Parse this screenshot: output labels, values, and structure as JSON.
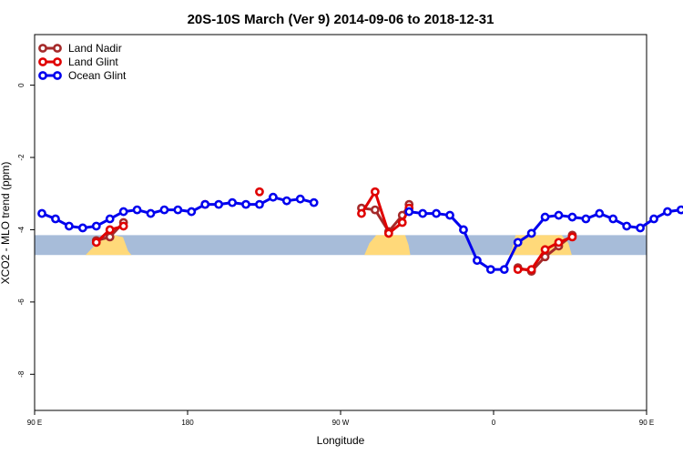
{
  "chart_data": {
    "type": "line",
    "title": "20S-10S March (Ver 9)   2014-09-06 to 2018-12-31",
    "xlabel": "Longitude",
    "ylabel": "XCO2 - MLO trend (ppm)",
    "xlim": [
      90,
      450
    ],
    "ylim": [
      -9,
      1.4
    ],
    "x_ticks": [
      {
        "value": 90,
        "label": "90 E"
      },
      {
        "value": 180,
        "label": "180"
      },
      {
        "value": 270,
        "label": "90 W"
      },
      {
        "value": 360,
        "label": "0"
      },
      {
        "value": 450,
        "label": "90 E"
      },
      {
        "value": 540,
        "label": "180"
      }
    ],
    "y_ticks": [
      {
        "value": 0,
        "label": "0"
      },
      {
        "value": -2,
        "label": "-2"
      },
      {
        "value": -4,
        "label": "-4"
      },
      {
        "value": -6,
        "label": "-6"
      },
      {
        "value": -8,
        "label": "-8"
      }
    ],
    "legend_position": "top-left",
    "background_band": {
      "y_range": [
        -4.7,
        -4.15
      ],
      "ocean_color": "#a7bcd9",
      "land_color": "#ffd97a"
    },
    "series": [
      {
        "name": "Land Nadir",
        "color": "#a52a2a",
        "segments": [
          [
            [
              126.3,
              -4.3
            ],
            [
              134.3,
              -4.2
            ],
            [
              142.3,
              -3.8
            ]
          ],
          [
            [
              282.3,
              -3.4
            ],
            [
              290.3,
              -3.45
            ],
            [
              298.3,
              -4.05
            ],
            [
              306.3,
              -3.6
            ],
            [
              310.3,
              -3.3
            ]
          ],
          [
            [
              374.3,
              -5.05
            ],
            [
              382.3,
              -5.15
            ],
            [
              390.3,
              -4.75
            ],
            [
              398.3,
              -4.45
            ],
            [
              406.3,
              -4.15
            ]
          ],
          [
            [
              486.3,
              -4.3
            ],
            [
              494.3,
              -4.1
            ],
            [
              502.3,
              -3.85
            ]
          ]
        ]
      },
      {
        "name": "Land Glint",
        "color": "#e00000",
        "segments": [
          [
            [
              126.3,
              -4.35
            ],
            [
              134.3,
              -4.0
            ],
            [
              142.3,
              -3.9
            ]
          ],
          [
            [
              190.3,
              -3.3
            ]
          ],
          [
            [
              222.3,
              -2.95
            ]
          ],
          [
            [
              282.3,
              -3.55
            ],
            [
              290.3,
              -2.95
            ],
            [
              298.3,
              -4.1
            ],
            [
              306.3,
              -3.8
            ],
            [
              310.3,
              -3.4
            ]
          ],
          [
            [
              374.3,
              -5.1
            ],
            [
              382.3,
              -5.1
            ],
            [
              390.3,
              -4.55
            ],
            [
              398.3,
              -4.35
            ],
            [
              406.3,
              -4.2
            ]
          ],
          [
            [
              486.3,
              -4.35
            ],
            [
              494.3,
              -4.0
            ],
            [
              502.3,
              -3.9
            ]
          ]
        ]
      },
      {
        "name": "Ocean Glint",
        "color": "#0000ee",
        "segments": [
          [
            [
              94.3,
              -3.55
            ],
            [
              102.3,
              -3.7
            ],
            [
              110.3,
              -3.9
            ],
            [
              118.3,
              -3.95
            ],
            [
              126.3,
              -3.9
            ],
            [
              134.3,
              -3.7
            ],
            [
              142.3,
              -3.5
            ],
            [
              150.3,
              -3.45
            ],
            [
              158.3,
              -3.55
            ],
            [
              166.3,
              -3.45
            ],
            [
              174.3,
              -3.45
            ],
            [
              182.3,
              -3.5
            ],
            [
              190.3,
              -3.3
            ],
            [
              198.3,
              -3.3
            ],
            [
              206.3,
              -3.25
            ],
            [
              214.3,
              -3.3
            ],
            [
              222.3,
              -3.3
            ],
            [
              230.3,
              -3.1
            ],
            [
              238.3,
              -3.2
            ],
            [
              246.3,
              -3.15
            ],
            [
              254.3,
              -3.25
            ]
          ],
          [
            [
              310.3,
              -3.5
            ],
            [
              318.3,
              -3.55
            ],
            [
              326.3,
              -3.55
            ],
            [
              334.3,
              -3.6
            ],
            [
              342.3,
              -4.0
            ],
            [
              350.3,
              -4.85
            ],
            [
              358.3,
              -5.1
            ],
            [
              366.3,
              -5.1
            ],
            [
              374.3,
              -4.35
            ],
            [
              382.3,
              -4.1
            ],
            [
              390.3,
              -3.65
            ],
            [
              398.3,
              -3.6
            ],
            [
              406.3,
              -3.65
            ],
            [
              414.3,
              -3.7
            ],
            [
              422.3,
              -3.55
            ],
            [
              430.3,
              -3.7
            ],
            [
              438.3,
              -3.9
            ],
            [
              446.3,
              -3.95
            ],
            [
              454.3,
              -3.7
            ],
            [
              462.3,
              -3.5
            ],
            [
              470.3,
              -3.45
            ],
            [
              478.3,
              -3.55
            ],
            [
              486.3,
              -3.45
            ]
          ]
        ]
      }
    ]
  }
}
